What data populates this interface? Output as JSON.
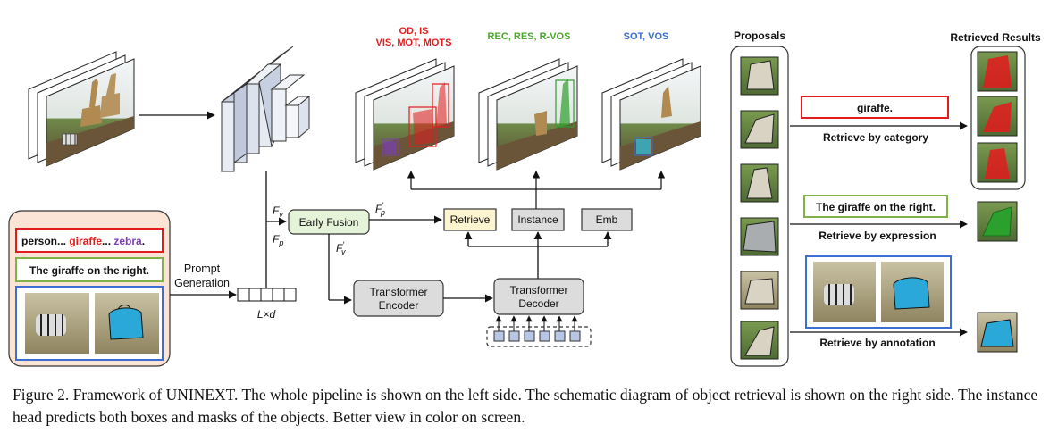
{
  "diagram": {
    "task_labels": {
      "od_is_line1": "OD, IS",
      "od_is_line2": "VIS, MOT, MOTS",
      "rec_res": "REC, RES, R-VOS",
      "sot_vos": "SOT, VOS"
    },
    "prompt_box": {
      "category_prompt": {
        "part1": "person... ",
        "part2": "giraffe",
        "part3": "... ",
        "part4": "zebra",
        "part5": "."
      },
      "expression_prompt": "The giraffe on the right."
    },
    "prompt_generation": {
      "line1": "Prompt",
      "line2": "Generation"
    },
    "prompt_shape": "L×d",
    "fv_label": "F",
    "fv_sub": "v",
    "fp_label": "F",
    "fp_sub": "p",
    "fp_prime_label": "F",
    "fp_prime_sub": "p",
    "fv_prime_label": "F",
    "fv_prime_sub": "v",
    "early_fusion": "Early Fusion",
    "retrieve": "Retrieve",
    "instance": "Instance",
    "emb": "Emb",
    "transformer_encoder": {
      "line1": "Transformer",
      "line2": "Encoder"
    },
    "transformer_decoder": {
      "line1": "Transformer",
      "line2": "Decoder"
    },
    "proposals_title": "Proposals",
    "retrieved_title": "Retrieved Results",
    "retrieval": {
      "category_query": "giraffe.",
      "category_caption": "Retrieve by category",
      "expression_query": "The giraffe on the right.",
      "expression_caption": "Retrieve by expression",
      "annotation_caption": "Retrieve by annotation"
    },
    "colors": {
      "red": "#e41a1c",
      "green": "#2ca02c",
      "blue": "#3b6fd1",
      "purple": "#7b3fb8",
      "fusion_fill": "#e5f3d9",
      "retrieve_fill": "#fdf5cf",
      "prompt_bg": "#fbe4d6",
      "gray_box": "#dcdcdc"
    }
  },
  "caption": "Figure 2. Framework of UNINEXT. The whole pipeline is shown on the left side. The schematic diagram of object retrieval is shown on the right side. The instance head predicts both boxes and masks of the objects. Better view in color on screen."
}
